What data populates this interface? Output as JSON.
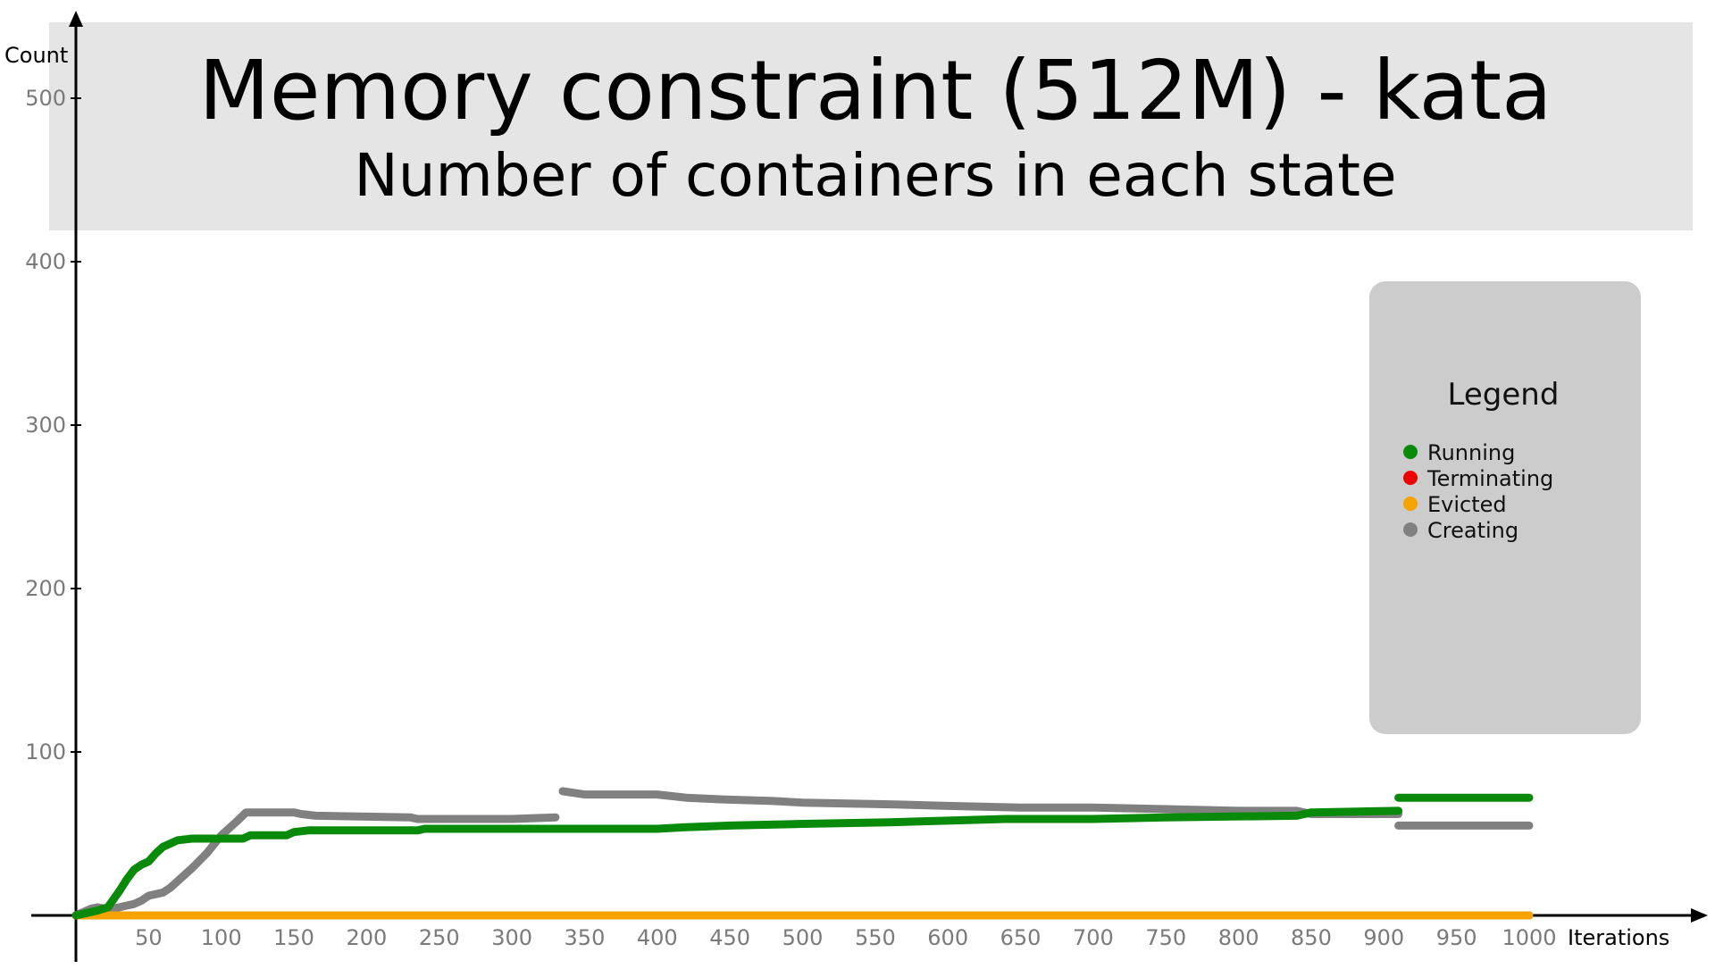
{
  "chart_data": {
    "type": "line",
    "title": "Memory constraint (512M) - kata",
    "subtitle": "Number of containers in each state",
    "xlabel": "Iterations",
    "ylabel": "Count",
    "xlim": [
      0,
      1000
    ],
    "ylim": [
      0,
      500
    ],
    "x_ticks": [
      50,
      100,
      150,
      200,
      250,
      300,
      350,
      400,
      450,
      500,
      550,
      600,
      650,
      700,
      750,
      800,
      850,
      900,
      950,
      1000
    ],
    "y_ticks": [
      100,
      200,
      300,
      400,
      500
    ],
    "grid": false,
    "legend": {
      "title": "Legend",
      "placement": "right",
      "entries": [
        "Running",
        "Terminating",
        "Evicted",
        "Creating"
      ]
    },
    "series": [
      {
        "name": "Running",
        "color": "#0a8a0a",
        "segments": [
          [
            [
              0,
              0
            ],
            [
              5,
              1
            ],
            [
              15,
              3
            ],
            [
              22,
              5
            ],
            [
              30,
              15
            ],
            [
              35,
              22
            ],
            [
              40,
              28
            ],
            [
              45,
              31
            ],
            [
              50,
              33
            ],
            [
              55,
              38
            ],
            [
              60,
              42
            ],
            [
              65,
              44
            ],
            [
              70,
              46
            ],
            [
              80,
              47
            ],
            [
              100,
              47
            ],
            [
              115,
              47
            ],
            [
              120,
              49
            ],
            [
              145,
              49
            ],
            [
              150,
              51
            ],
            [
              160,
              52
            ],
            [
              235,
              52
            ],
            [
              240,
              53
            ],
            [
              400,
              53
            ],
            [
              420,
              54
            ],
            [
              450,
              55
            ],
            [
              500,
              56
            ],
            [
              560,
              57
            ],
            [
              600,
              58
            ],
            [
              640,
              59
            ],
            [
              700,
              59
            ],
            [
              750,
              60
            ],
            [
              840,
              61
            ],
            [
              850,
              63
            ],
            [
              910,
              64
            ]
          ],
          [
            [
              910,
              72
            ],
            [
              1000,
              72
            ]
          ]
        ]
      },
      {
        "name": "Terminating",
        "color": "#ee0000",
        "segments": [
          [
            [
              0,
              0
            ],
            [
              1000,
              0
            ]
          ]
        ]
      },
      {
        "name": "Evicted",
        "color": "#f5a300",
        "segments": [
          [
            [
              0,
              0
            ],
            [
              1000,
              0
            ]
          ]
        ]
      },
      {
        "name": "Creating",
        "color": "#808080",
        "segments": [
          [
            [
              0,
              0
            ],
            [
              5,
              2
            ],
            [
              10,
              4
            ],
            [
              15,
              5
            ],
            [
              20,
              4
            ],
            [
              25,
              4
            ],
            [
              30,
              5
            ],
            [
              35,
              6
            ],
            [
              40,
              7
            ],
            [
              45,
              9
            ],
            [
              50,
              12
            ],
            [
              55,
              13
            ],
            [
              60,
              14
            ],
            [
              65,
              17
            ],
            [
              70,
              21
            ],
            [
              80,
              29
            ],
            [
              90,
              38
            ],
            [
              100,
              49
            ],
            [
              110,
              57
            ],
            [
              117,
              63
            ],
            [
              125,
              63
            ],
            [
              150,
              63
            ],
            [
              155,
              62
            ],
            [
              165,
              61
            ],
            [
              230,
              60
            ],
            [
              235,
              59
            ],
            [
              290,
              59
            ],
            [
              300,
              59
            ],
            [
              330,
              60
            ]
          ],
          [
            [
              335,
              76
            ],
            [
              350,
              74
            ],
            [
              400,
              74
            ],
            [
              420,
              72
            ],
            [
              445,
              71
            ],
            [
              480,
              70
            ],
            [
              500,
              69
            ],
            [
              560,
              68
            ],
            [
              600,
              67
            ],
            [
              650,
              66
            ],
            [
              700,
              66
            ],
            [
              750,
              65
            ],
            [
              800,
              64
            ],
            [
              840,
              64
            ],
            [
              850,
              62
            ],
            [
              910,
              62
            ]
          ],
          [
            [
              910,
              55
            ],
            [
              1000,
              55
            ]
          ]
        ]
      }
    ]
  }
}
